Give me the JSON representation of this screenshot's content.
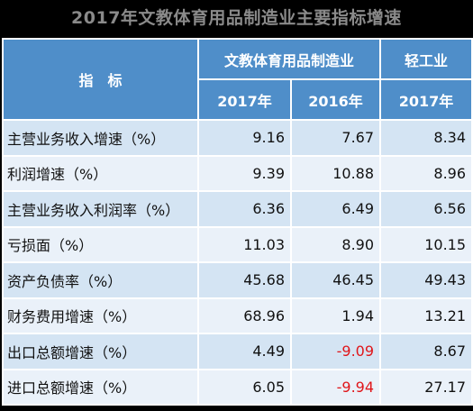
{
  "title": "2017年文教体育用品制造业主要指标增速",
  "header": {
    "indicator": "指　标",
    "group1": "文教体育用品制造业",
    "group2": "轻工业",
    "year2017": "2017年",
    "year2016": "2016年",
    "year2017b": "2017年"
  },
  "rows": [
    {
      "label": "主营业务收入增速（%）",
      "v2017": "9.16",
      "v2016": "7.67",
      "light2017": "8.34"
    },
    {
      "label": "利润增速（%）",
      "v2017": "9.39",
      "v2016": "10.88",
      "light2017": "8.96"
    },
    {
      "label": "主营业务收入利润率（%）",
      "v2017": "6.36",
      "v2016": "6.49",
      "light2017": "6.56"
    },
    {
      "label": "亏损面（%）",
      "v2017": "11.03",
      "v2016": "8.90",
      "light2017": "10.15"
    },
    {
      "label": "资产负债率（%）",
      "v2017": "45.68",
      "v2016": "46.45",
      "light2017": "49.43"
    },
    {
      "label": "财务费用增速（%）",
      "v2017": "68.96",
      "v2016": "1.94",
      "light2017": "13.21"
    },
    {
      "label": "出口总额增速（%）",
      "v2017": "4.49",
      "v2016": "-9.09",
      "light2017": "8.67"
    },
    {
      "label": "进口总额增速（%）",
      "v2017": "6.05",
      "v2016": "-9.94",
      "light2017": "27.17"
    }
  ],
  "colors": {
    "header_bg": "#4f8ec9",
    "row_bg_a": "#d4e4f3",
    "row_bg_b": "#eaf1f9",
    "negative": "#e0161a",
    "title_text": "#8a8a8a"
  }
}
